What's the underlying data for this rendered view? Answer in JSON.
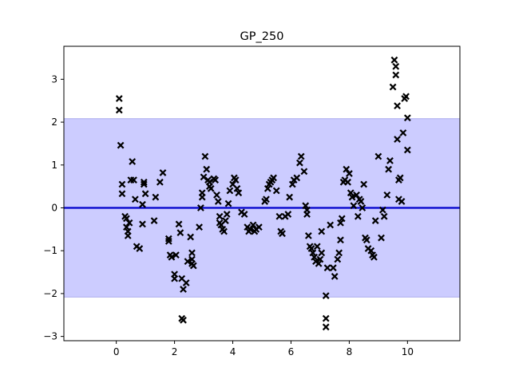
{
  "chart_data": {
    "type": "scatter",
    "title": "GP_250",
    "xlabel": "",
    "ylabel": "",
    "xlim": [
      -1.8,
      11.8
    ],
    "ylim": [
      -3.1,
      3.77
    ],
    "xticks": [
      0,
      2,
      4,
      6,
      8,
      10
    ],
    "yticks": [
      -3,
      -2,
      -1,
      0,
      1,
      2,
      3
    ],
    "grid": false,
    "legend": "none",
    "band": {
      "lower": -2.08,
      "upper": 2.08,
      "color": "#ccccff",
      "edge": "#aaaaee"
    },
    "mean_line": {
      "y": 0.0,
      "color": "#0000cc"
    },
    "marker_color": "#000000",
    "points": [
      {
        "x": 0.1,
        "y": 2.55
      },
      {
        "x": 0.1,
        "y": 2.28
      },
      {
        "x": 0.15,
        "y": 1.46
      },
      {
        "x": 0.2,
        "y": 0.55
      },
      {
        "x": 0.2,
        "y": 0.33
      },
      {
        "x": 0.3,
        "y": -0.2
      },
      {
        "x": 0.35,
        "y": -0.25
      },
      {
        "x": 0.35,
        "y": -0.45
      },
      {
        "x": 0.4,
        "y": -0.55
      },
      {
        "x": 0.4,
        "y": -0.65
      },
      {
        "x": 0.45,
        "y": -0.35
      },
      {
        "x": 0.5,
        "y": 0.65
      },
      {
        "x": 0.55,
        "y": 1.08
      },
      {
        "x": 0.6,
        "y": 0.65
      },
      {
        "x": 0.65,
        "y": 0.2
      },
      {
        "x": 0.7,
        "y": -0.9
      },
      {
        "x": 0.8,
        "y": -0.95
      },
      {
        "x": 0.9,
        "y": -0.38
      },
      {
        "x": 0.9,
        "y": 0.08
      },
      {
        "x": 0.95,
        "y": 0.6
      },
      {
        "x": 0.95,
        "y": 0.55
      },
      {
        "x": 1.0,
        "y": 0.33
      },
      {
        "x": 1.3,
        "y": -0.3
      },
      {
        "x": 1.35,
        "y": 0.25
      },
      {
        "x": 1.5,
        "y": 0.6
      },
      {
        "x": 1.6,
        "y": 0.82
      },
      {
        "x": 1.8,
        "y": -0.72
      },
      {
        "x": 1.8,
        "y": -0.78
      },
      {
        "x": 1.85,
        "y": -1.1
      },
      {
        "x": 1.9,
        "y": -1.15
      },
      {
        "x": 2.0,
        "y": -1.55
      },
      {
        "x": 2.0,
        "y": -1.65
      },
      {
        "x": 2.05,
        "y": -1.1
      },
      {
        "x": 2.15,
        "y": -0.38
      },
      {
        "x": 2.2,
        "y": -0.58
      },
      {
        "x": 2.25,
        "y": -1.65
      },
      {
        "x": 2.25,
        "y": -2.58
      },
      {
        "x": 2.3,
        "y": -2.62
      },
      {
        "x": 2.3,
        "y": -1.9
      },
      {
        "x": 2.4,
        "y": -1.75
      },
      {
        "x": 2.45,
        "y": -1.25
      },
      {
        "x": 2.55,
        "y": -0.68
      },
      {
        "x": 2.6,
        "y": -1.05
      },
      {
        "x": 2.6,
        "y": -1.2
      },
      {
        "x": 2.6,
        "y": -1.3
      },
      {
        "x": 2.65,
        "y": -1.35
      },
      {
        "x": 2.85,
        "y": -0.45
      },
      {
        "x": 2.9,
        "y": 0.0
      },
      {
        "x": 2.95,
        "y": 0.25
      },
      {
        "x": 2.95,
        "y": 0.35
      },
      {
        "x": 3.0,
        "y": 0.72
      },
      {
        "x": 3.05,
        "y": 1.2
      },
      {
        "x": 3.1,
        "y": 0.9
      },
      {
        "x": 3.15,
        "y": 0.65
      },
      {
        "x": 3.2,
        "y": 0.6
      },
      {
        "x": 3.2,
        "y": 0.5
      },
      {
        "x": 3.25,
        "y": 0.45
      },
      {
        "x": 3.35,
        "y": 0.68
      },
      {
        "x": 3.4,
        "y": 0.65
      },
      {
        "x": 3.45,
        "y": 0.3
      },
      {
        "x": 3.5,
        "y": 0.15
      },
      {
        "x": 3.55,
        "y": -0.2
      },
      {
        "x": 3.55,
        "y": -0.35
      },
      {
        "x": 3.6,
        "y": -0.4
      },
      {
        "x": 3.65,
        "y": -0.5
      },
      {
        "x": 3.7,
        "y": -0.55
      },
      {
        "x": 3.75,
        "y": -0.3
      },
      {
        "x": 3.8,
        "y": -0.15
      },
      {
        "x": 3.85,
        "y": 0.1
      },
      {
        "x": 3.9,
        "y": 0.4
      },
      {
        "x": 4.0,
        "y": 0.55
      },
      {
        "x": 4.05,
        "y": 0.7
      },
      {
        "x": 4.1,
        "y": 0.65
      },
      {
        "x": 4.15,
        "y": 0.45
      },
      {
        "x": 4.2,
        "y": 0.35
      },
      {
        "x": 4.3,
        "y": -0.1
      },
      {
        "x": 4.4,
        "y": -0.15
      },
      {
        "x": 4.5,
        "y": -0.45
      },
      {
        "x": 4.55,
        "y": -0.55
      },
      {
        "x": 4.6,
        "y": -0.5
      },
      {
        "x": 4.7,
        "y": -0.4
      },
      {
        "x": 4.75,
        "y": -0.55
      },
      {
        "x": 4.8,
        "y": -0.5
      },
      {
        "x": 4.9,
        "y": -0.45
      },
      {
        "x": 5.1,
        "y": 0.15
      },
      {
        "x": 5.15,
        "y": 0.2
      },
      {
        "x": 5.2,
        "y": 0.45
      },
      {
        "x": 5.25,
        "y": 0.55
      },
      {
        "x": 5.3,
        "y": 0.6
      },
      {
        "x": 5.35,
        "y": 0.65
      },
      {
        "x": 5.4,
        "y": 0.7
      },
      {
        "x": 5.5,
        "y": 0.4
      },
      {
        "x": 5.6,
        "y": -0.2
      },
      {
        "x": 5.65,
        "y": -0.55
      },
      {
        "x": 5.7,
        "y": -0.6
      },
      {
        "x": 5.8,
        "y": -0.2
      },
      {
        "x": 5.9,
        "y": -0.15
      },
      {
        "x": 5.95,
        "y": 0.25
      },
      {
        "x": 6.05,
        "y": 0.55
      },
      {
        "x": 6.1,
        "y": 0.65
      },
      {
        "x": 6.2,
        "y": 0.7
      },
      {
        "x": 6.3,
        "y": 1.05
      },
      {
        "x": 6.35,
        "y": 1.2
      },
      {
        "x": 6.45,
        "y": 0.85
      },
      {
        "x": 6.5,
        "y": 0.05
      },
      {
        "x": 6.55,
        "y": -0.05
      },
      {
        "x": 6.55,
        "y": -0.15
      },
      {
        "x": 6.6,
        "y": -0.65
      },
      {
        "x": 6.65,
        "y": -0.9
      },
      {
        "x": 6.7,
        "y": -0.95
      },
      {
        "x": 6.75,
        "y": -1.05
      },
      {
        "x": 6.8,
        "y": -1.15
      },
      {
        "x": 6.85,
        "y": -1.25
      },
      {
        "x": 6.9,
        "y": -0.9
      },
      {
        "x": 6.95,
        "y": -1.3
      },
      {
        "x": 7.0,
        "y": -1.2
      },
      {
        "x": 7.05,
        "y": -1.05
      },
      {
        "x": 7.05,
        "y": -0.55
      },
      {
        "x": 7.2,
        "y": -2.05
      },
      {
        "x": 7.2,
        "y": -2.58
      },
      {
        "x": 7.2,
        "y": -2.78
      },
      {
        "x": 7.25,
        "y": -1.4
      },
      {
        "x": 7.35,
        "y": -0.4
      },
      {
        "x": 7.45,
        "y": -1.4
      },
      {
        "x": 7.5,
        "y": -1.6
      },
      {
        "x": 7.6,
        "y": -1.2
      },
      {
        "x": 7.65,
        "y": -1.05
      },
      {
        "x": 7.7,
        "y": -0.75
      },
      {
        "x": 7.7,
        "y": -0.35
      },
      {
        "x": 7.75,
        "y": -0.25
      },
      {
        "x": 7.8,
        "y": 0.6
      },
      {
        "x": 7.85,
        "y": 0.65
      },
      {
        "x": 7.9,
        "y": 0.9
      },
      {
        "x": 7.95,
        "y": 0.6
      },
      {
        "x": 8.0,
        "y": 0.8
      },
      {
        "x": 8.05,
        "y": 0.35
      },
      {
        "x": 8.1,
        "y": 0.25
      },
      {
        "x": 8.15,
        "y": 0.05
      },
      {
        "x": 8.25,
        "y": 0.3
      },
      {
        "x": 8.3,
        "y": -0.2
      },
      {
        "x": 8.35,
        "y": 0.2
      },
      {
        "x": 8.4,
        "y": 0.15
      },
      {
        "x": 8.45,
        "y": 0.0
      },
      {
        "x": 8.5,
        "y": 0.55
      },
      {
        "x": 8.55,
        "y": -0.7
      },
      {
        "x": 8.6,
        "y": -0.75
      },
      {
        "x": 8.65,
        "y": -0.95
      },
      {
        "x": 8.75,
        "y": -1.0
      },
      {
        "x": 8.8,
        "y": -1.1
      },
      {
        "x": 8.85,
        "y": -1.15
      },
      {
        "x": 8.9,
        "y": -0.3
      },
      {
        "x": 9.0,
        "y": 1.2
      },
      {
        "x": 9.1,
        "y": -0.7
      },
      {
        "x": 9.15,
        "y": -0.05
      },
      {
        "x": 9.2,
        "y": -0.2
      },
      {
        "x": 9.3,
        "y": 0.3
      },
      {
        "x": 9.35,
        "y": 0.9
      },
      {
        "x": 9.4,
        "y": 1.1
      },
      {
        "x": 9.5,
        "y": 2.82
      },
      {
        "x": 9.55,
        "y": 3.45
      },
      {
        "x": 9.6,
        "y": 3.3
      },
      {
        "x": 9.6,
        "y": 3.1
      },
      {
        "x": 9.65,
        "y": 2.38
      },
      {
        "x": 9.65,
        "y": 1.6
      },
      {
        "x": 9.7,
        "y": 0.65
      },
      {
        "x": 9.7,
        "y": 0.2
      },
      {
        "x": 9.75,
        "y": 0.7
      },
      {
        "x": 9.8,
        "y": 0.15
      },
      {
        "x": 9.85,
        "y": 1.75
      },
      {
        "x": 9.9,
        "y": 2.55
      },
      {
        "x": 9.95,
        "y": 2.6
      },
      {
        "x": 10.0,
        "y": 2.1
      },
      {
        "x": 10.0,
        "y": 1.35
      }
    ]
  }
}
